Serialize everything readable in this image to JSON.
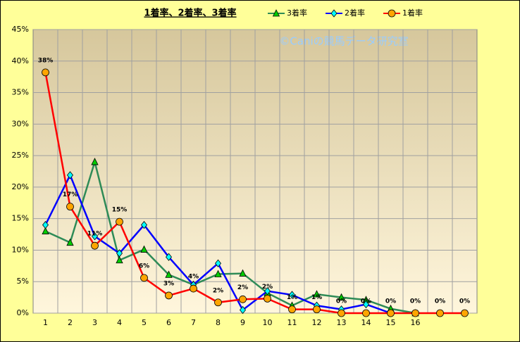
{
  "chart_data": {
    "type": "line",
    "title": "1着率、2着率、3着率",
    "annotation": "©Caniの競馬データ研究室",
    "categories": [
      "1",
      "2",
      "3",
      "4",
      "5",
      "6",
      "7",
      "8",
      "9",
      "10",
      "11",
      "12",
      "13",
      "14",
      "15",
      "16",
      null,
      null
    ],
    "ylim": [
      0,
      45
    ],
    "yticks": [
      {
        "value": 0,
        "label": "0%"
      },
      {
        "value": 5,
        "label": "5%"
      },
      {
        "value": 10,
        "label": "10%"
      },
      {
        "value": 15,
        "label": "15%"
      },
      {
        "value": 20,
        "label": "20%"
      },
      {
        "value": 25,
        "label": "25%"
      },
      {
        "value": 30,
        "label": "30%"
      },
      {
        "value": 35,
        "label": "35%"
      },
      {
        "value": 40,
        "label": "40%"
      },
      {
        "value": 45,
        "label": "45%"
      }
    ],
    "grid": true,
    "legend": "top",
    "series": [
      {
        "name": "3着率",
        "color": "#2e8b57",
        "marker": "triangle",
        "marker_color": "#00cc00",
        "values": [
          13,
          11.2,
          24,
          8.4,
          10.1,
          6.1,
          4.5,
          6.2,
          6.3,
          3.2,
          1.2,
          3.0,
          2.5,
          2.1,
          0.7,
          0,
          null,
          null
        ]
      },
      {
        "name": "2着率",
        "color": "#0000ff",
        "marker": "diamond",
        "marker_color": "#00ffff",
        "values": [
          14,
          21.9,
          12.2,
          9.5,
          14,
          8.9,
          4.5,
          7.9,
          0.5,
          3.5,
          2.9,
          1.2,
          0.6,
          1.4,
          0,
          null,
          null,
          null
        ]
      },
      {
        "name": "1着率",
        "color": "#ff0000",
        "marker": "circle",
        "marker_color": "#ffa500",
        "values": [
          38.2,
          16.9,
          10.7,
          14.5,
          5.6,
          2.8,
          3.9,
          1.7,
          2.2,
          2.3,
          0.6,
          0.6,
          0,
          0,
          0,
          0,
          0,
          0
        ],
        "value_labels": [
          "38%",
          "17%",
          "11%",
          "15%",
          "6%",
          "3%",
          "4%",
          "2%",
          "2%",
          "2%",
          "1%",
          "1%",
          "0%",
          "0%",
          "0%",
          "0%",
          "0%",
          "0%"
        ]
      }
    ]
  }
}
